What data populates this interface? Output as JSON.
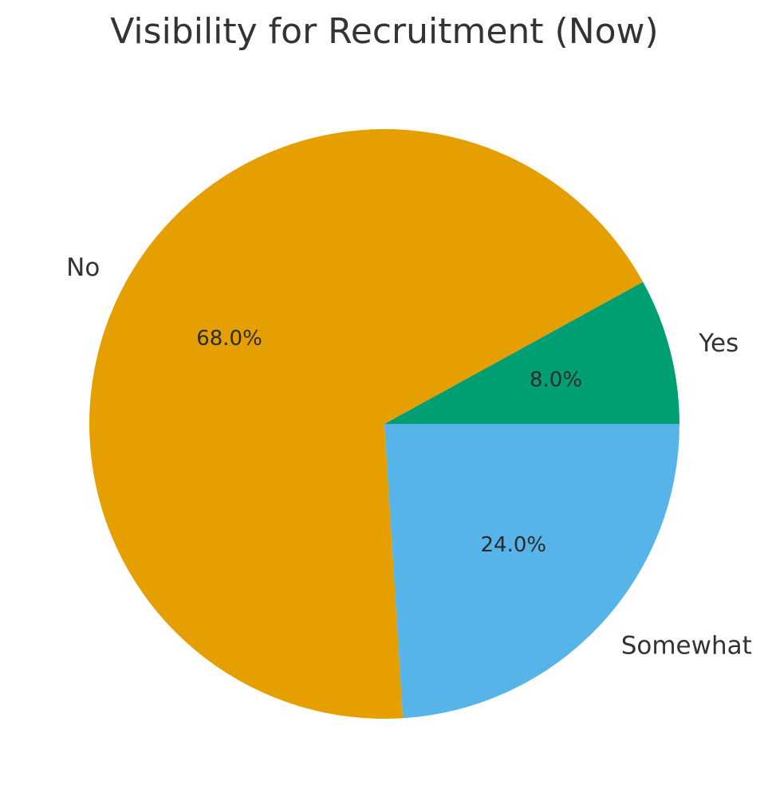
{
  "chart_data": {
    "type": "pie",
    "title": "Visibility for Recruitment (Now)",
    "categories": [
      "Yes",
      "No",
      "Somewhat"
    ],
    "values": [
      8.0,
      68.0,
      24.0
    ],
    "value_labels": [
      "8.0%",
      "68.0%",
      "24.0%"
    ],
    "colors": [
      "#009E73",
      "#E69F00",
      "#56B4E9"
    ],
    "start_angle_deg": 0,
    "direction": "counterclockwise",
    "legend": "none"
  }
}
